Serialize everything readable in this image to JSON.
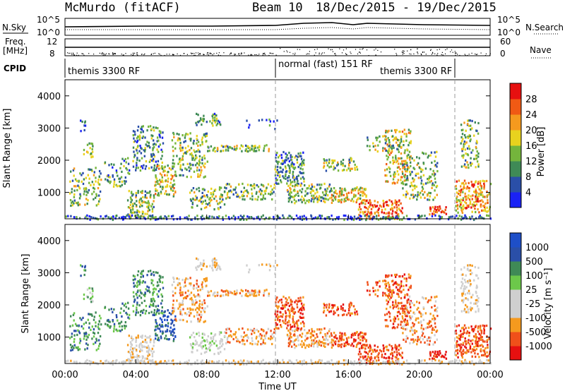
{
  "title": {
    "station": "McMurdo (fitACF)",
    "beam": "Beam 10",
    "date_range": "18/Dec/2015 - 19/Dec/2015"
  },
  "top_panel": {
    "left_label": "N.Sky",
    "right_label": "N.Search",
    "left_ticks": [
      "10^5",
      "10^0"
    ],
    "right_ticks": [
      "10^5",
      "10^0"
    ]
  },
  "freq_panel": {
    "left_label_1": "Freq.",
    "left_label_2": "[MHz]",
    "right_label": "Nave",
    "left_ticks": [
      "12",
      "8"
    ],
    "right_ticks": [
      "60",
      "0"
    ]
  },
  "cpid": {
    "label": "CPID",
    "modes": [
      "themis 3300 RF",
      "normal (fast) 151 RF",
      "themis 3300 RF"
    ]
  },
  "colors": {
    "power": [
      "#1a22f5",
      "#2a4fa8",
      "#3f8a56",
      "#74b53c",
      "#e8d21e",
      "#f59a1e",
      "#f05a14",
      "#e61010"
    ],
    "velocity": [
      "#e61010",
      "#f0501a",
      "#f59a1e",
      "#cfcfcf",
      "#cfcfcf",
      "#6cc84a",
      "#3f8a56",
      "#2a4fa8",
      "#1e4fc8"
    ]
  },
  "chart_data": [
    {
      "type": "heatmap",
      "name": "power",
      "ylabel": "Slant Range [km]",
      "yticks": [
        "1000",
        "2000",
        "3000",
        "4000"
      ],
      "ylim": [
        180,
        4500
      ],
      "xlim": [
        "00:00",
        "00:00"
      ],
      "colorbar_label": "Power [dB]",
      "colorbar_ticks": [
        "4",
        "8",
        "12",
        "16",
        "20",
        "24",
        "28"
      ],
      "colorbar_range": [
        0,
        32
      ]
    },
    {
      "type": "heatmap",
      "name": "velocity",
      "ylabel": "Slant Range [km]",
      "yticks": [
        "1000",
        "2000",
        "3000",
        "4000"
      ],
      "ylim": [
        180,
        4500
      ],
      "xlabel": "Time UT",
      "xticks": [
        "00:00",
        "04:00",
        "08:00",
        "12:00",
        "16:00",
        "20:00",
        "00:00"
      ],
      "colorbar_label": "Velocity [m s⁻¹]",
      "colorbar_ticks": [
        "1000",
        "500",
        "100",
        "25",
        "-25",
        "-100",
        "-500",
        "-1000"
      ]
    }
  ]
}
